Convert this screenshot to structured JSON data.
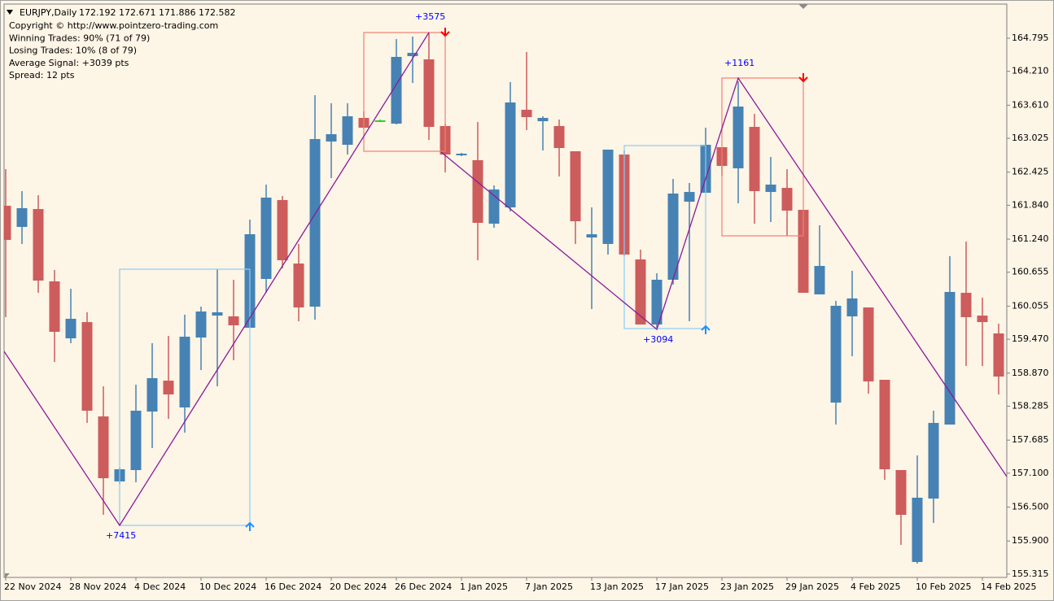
{
  "chart_data": {
    "type": "candlestick",
    "title": "EURJPY,Daily",
    "header_ohlc": "172.192 172.671 171.886 172.582",
    "info": [
      "Copyright © http://www.pointzero-trading.com",
      "Winning Trades: 90% (71 of 79)",
      "Losing Trades: 10% (8 of 79)",
      "Average Signal: +3039 pts",
      "Spread: 12 pts"
    ],
    "annotations": [
      "+7415",
      "+3575",
      "+3094",
      "+1161"
    ],
    "categories": [
      "22 Nov 2024",
      null,
      null,
      null,
      "28 Nov 2024",
      null,
      null,
      null,
      "4 Dec 2024",
      null,
      null,
      null,
      "10 Dec 2024",
      null,
      null,
      null,
      "16 Dec 2024",
      null,
      null,
      null,
      "20 Dec 2024",
      null,
      null,
      null,
      "26 Dec 2024",
      null,
      null,
      null,
      "1 Jan 2025",
      null,
      null,
      null,
      "7 Jan 2025",
      null,
      null,
      null,
      "13 Jan 2025",
      null,
      null,
      null,
      "17 Jan 2025",
      null,
      null,
      null,
      "23 Jan 2025",
      null,
      null,
      null,
      "29 Jan 2025",
      null,
      null,
      null,
      "4 Feb 2025",
      null,
      null,
      null,
      "10 Feb 2025",
      null,
      null,
      null,
      "14 Feb 2025",
      null
    ],
    "open": [
      161.831,
      161.457,
      161.773,
      160.493,
      159.486,
      159.773,
      158.104,
      156.954,
      157.155,
      158.19,
      158.737,
      158.263,
      159.5,
      159.888,
      159.874,
      159.673,
      160.536,
      161.932,
      160.809,
      160.046,
      162.967,
      162.91,
      163.385,
      163.342,
      163.284,
      164.478,
      164.421,
      163.241,
      162.723,
      162.637,
      161.514,
      161.802,
      163.529,
      163.327,
      163.241,
      162.795,
      161.27,
      161.155,
      162.737,
      160.881,
      159.73,
      160.522,
      161.903,
      162.061,
      162.867,
      162.493,
      163.226,
      162.075,
      162.147,
      161.759,
      160.263,
      158.349,
      159.874,
      160.032,
      158.752,
      157.155,
      155.529,
      156.651,
      157.96,
      160.291,
      159.888,
      159.572
    ],
    "high": [
      162.478,
      162.09,
      162.018,
      160.695,
      160.363,
      159.946,
      158.637,
      157.198,
      158.665,
      159.399,
      159.529,
      159.903,
      160.046,
      160.709,
      160.522,
      161.586,
      162.205,
      162.003,
      161.155,
      163.788,
      163.644,
      163.644,
      163.5,
      163.356,
      164.78,
      164.824,
      164.895,
      163.284,
      162.766,
      163.313,
      162.191,
      164.018,
      164.55,
      163.414,
      163.356,
      162.795,
      161.802,
      162.824,
      162.809,
      161.054,
      160.637,
      162.306,
      162.234,
      163.212,
      162.867,
      164.032,
      163.457,
      162.694,
      162.478,
      161.759,
      161.486,
      160.147,
      160.68,
      160.032,
      158.752,
      157.155,
      157.414,
      158.205,
      160.939,
      161.198,
      160.205,
      159.745
    ],
    "low": [
      159.86,
      161.155,
      160.291,
      159.068,
      159.399,
      157.989,
      156.363,
      156.91,
      156.939,
      157.543,
      158.061,
      157.817,
      158.924,
      158.637,
      159.097,
      159.673,
      160.291,
      160.723,
      159.788,
      159.817,
      162.32,
      162.737,
      163.198,
      163.327,
      163.27,
      164.003,
      162.996,
      162.421,
      162.709,
      160.867,
      161.442,
      161.73,
      163.169,
      162.809,
      162.349,
      161.155,
      160.004,
      160.968,
      160.939,
      159.73,
      159.673,
      160.435,
      159.788,
      162.061,
      162.363,
      161.874,
      161.514,
      161.543,
      161.298,
      160.291,
      160.263,
      157.96,
      159.169,
      158.507,
      156.982,
      155.831,
      155.5,
      156.22,
      157.96,
      158.996,
      158.996,
      158.493
    ],
    "close": [
      161.227,
      161.788,
      160.507,
      159.601,
      159.831,
      158.205,
      157.011,
      157.169,
      158.205,
      158.781,
      158.493,
      159.514,
      159.96,
      159.946,
      159.716,
      161.327,
      161.975,
      160.867,
      160.032,
      163.011,
      163.097,
      163.414,
      163.212,
      163.342,
      164.464,
      164.536,
      163.226,
      162.737,
      162.752,
      161.529,
      162.119,
      163.658,
      163.399,
      163.385,
      162.852,
      161.557,
      161.327,
      162.824,
      160.968,
      159.73,
      160.522,
      162.047,
      162.075,
      162.91,
      162.536,
      163.586,
      162.09,
      162.205,
      161.745,
      160.291,
      160.766,
      160.061,
      160.191,
      158.723,
      157.169,
      156.363,
      156.666,
      157.989,
      160.306,
      159.86,
      159.773,
      158.809
    ],
    "up_color": "#4682b4",
    "down_color": "#cd5c5c",
    "doji_color": "#32cd32",
    "ylim": [
      155.256,
      165.399
    ],
    "yticks": [
      164.795,
      {
        "value": 164.21,
        "label": "164.210"
      },
      {
        "value": 163.61,
        "label": "163.610"
      },
      163.025,
      162.425,
      {
        "value": 161.84,
        "label": "161.840"
      },
      {
        "value": 161.24,
        "label": "161.240"
      },
      160.655,
      160.055,
      {
        "value": 159.47,
        "label": "159.470"
      },
      {
        "value": 158.87,
        "label": "158.870"
      },
      158.285,
      157.685,
      {
        "value": 157.1,
        "label": "157.100"
      },
      {
        "value": 156.5,
        "label": "156.500"
      },
      {
        "value": 155.9,
        "label": "155.900"
      },
      155.315
    ],
    "grid": false
  }
}
